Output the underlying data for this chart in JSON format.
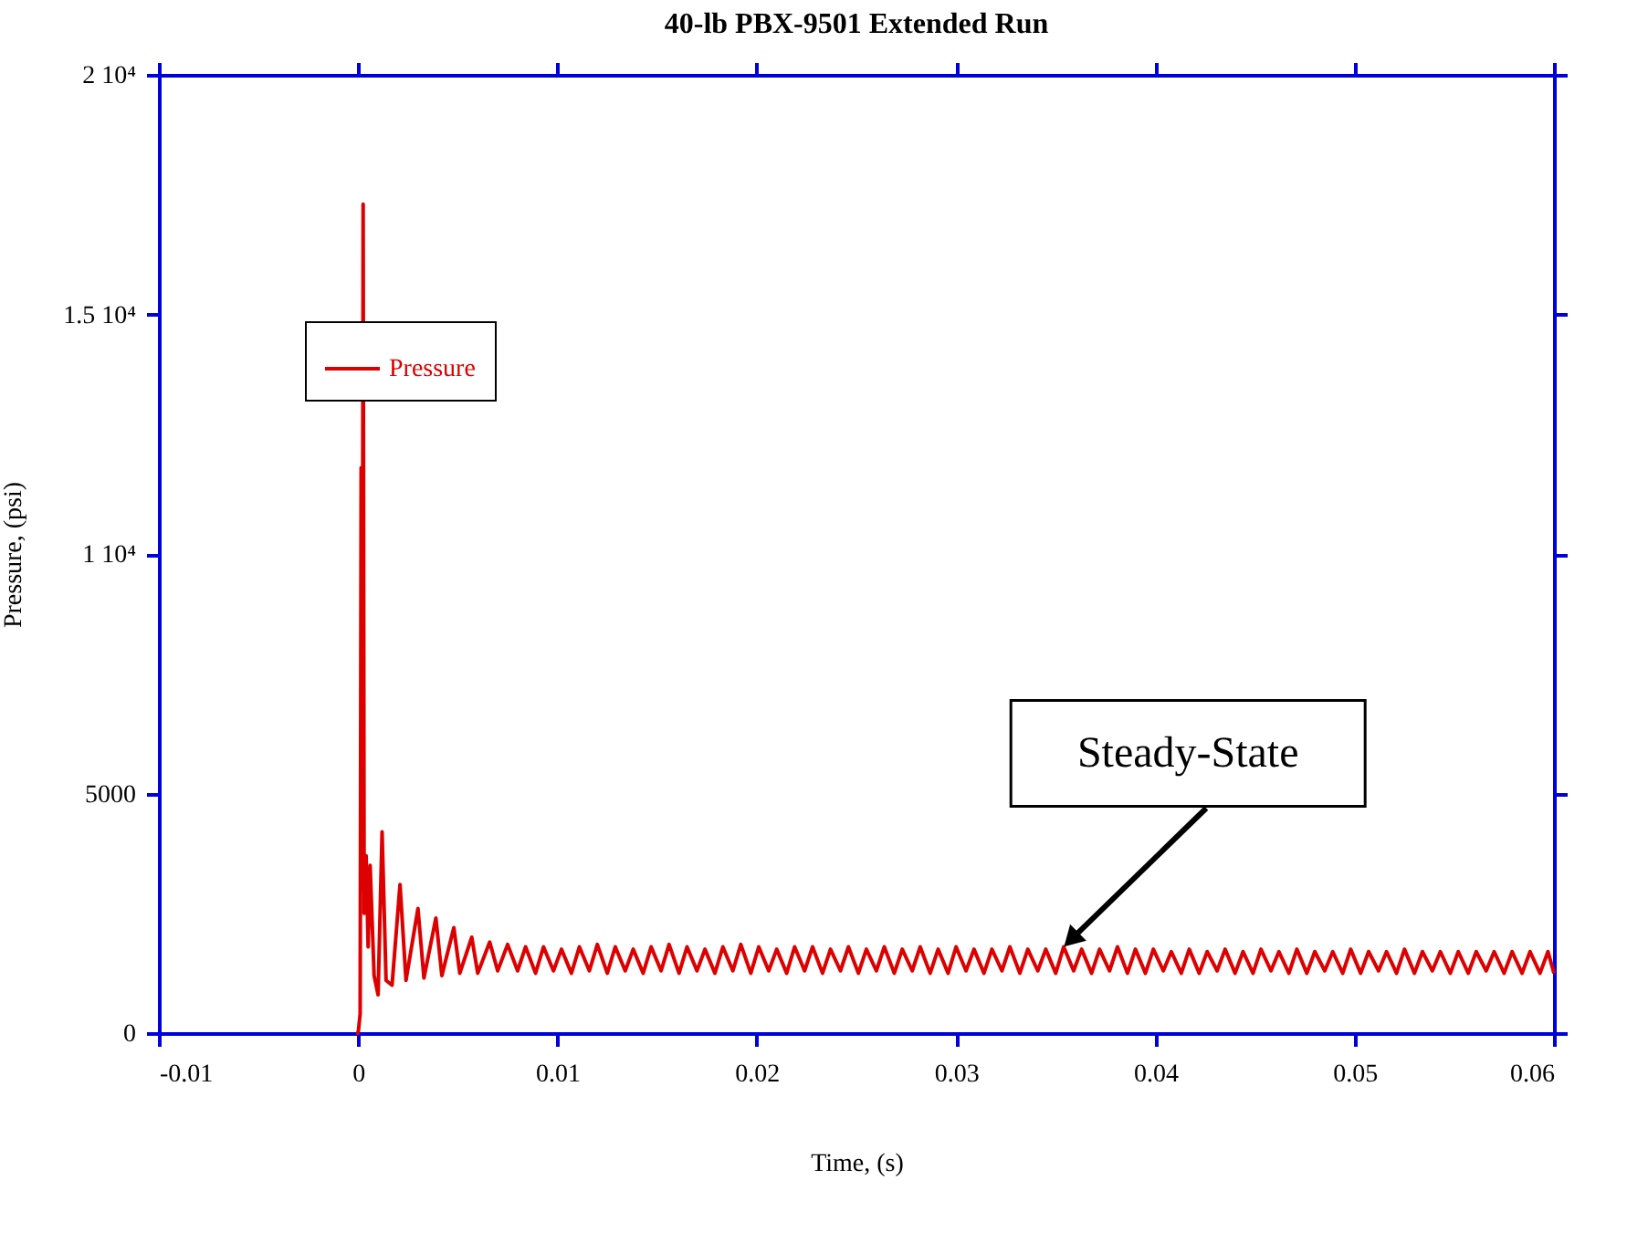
{
  "chart_data": {
    "type": "line",
    "title": "40-lb PBX-9501 Extended Run",
    "xlabel": "Time, (s)",
    "ylabel": "Pressure, (psi)",
    "xlim": [
      -0.01,
      0.06
    ],
    "xticks": [
      -0.01,
      0,
      0.01,
      0.02,
      0.03,
      0.04,
      0.05,
      0.06
    ],
    "ylim": [
      0,
      20000
    ],
    "yticks": [
      0,
      5000,
      {
        "value": 10000,
        "label": "1 10⁴"
      },
      {
        "value": 15000,
        "label": "1.5 10⁴"
      },
      {
        "value": 20000,
        "label": "2 10⁴"
      }
    ],
    "grid": false,
    "legend": "top left",
    "marker": "none",
    "line_style": "solid",
    "annotations": [
      {
        "text": "Steady-State",
        "x": 0.0355,
        "y": 1800
      }
    ],
    "series": [
      {
        "name": "Pressure",
        "color": "#dd0000",
        "x": [
          -0.0001,
          0.0,
          0.0001,
          0.00015,
          0.0002,
          0.00025,
          0.0003,
          0.0004,
          0.0005,
          0.0006,
          0.0008,
          0.001,
          0.0012,
          0.0014,
          0.0017,
          0.0021,
          0.0024,
          0.003,
          0.0033,
          0.0039,
          0.0042,
          0.0048,
          0.0051,
          0.0057,
          0.006,
          0.0066,
          0.007,
          0.0075,
          0.008,
          0.0084,
          0.0089,
          0.0093,
          0.0098,
          0.0102,
          0.0107,
          0.0111,
          0.0116,
          0.012,
          0.0125,
          0.0129,
          0.0134,
          0.0138,
          0.0143,
          0.0147,
          0.0152,
          0.0156,
          0.0161,
          0.0165,
          0.017,
          0.0174,
          0.0179,
          0.0183,
          0.0188,
          0.0192,
          0.0197,
          0.0201,
          0.0206,
          0.021,
          0.0215,
          0.0219,
          0.0224,
          0.0228,
          0.0233,
          0.0237,
          0.0242,
          0.0246,
          0.0251,
          0.0255,
          0.026,
          0.0264,
          0.0269,
          0.0273,
          0.0278,
          0.0282,
          0.0287,
          0.0291,
          0.0296,
          0.03,
          0.0305,
          0.0309,
          0.0314,
          0.0318,
          0.0323,
          0.0327,
          0.0332,
          0.0336,
          0.0341,
          0.0345,
          0.035,
          0.0354,
          0.0359,
          0.0363,
          0.0368,
          0.0372,
          0.0377,
          0.0381,
          0.0386,
          0.039,
          0.0395,
          0.0399,
          0.0404,
          0.0408,
          0.0413,
          0.0417,
          0.0422,
          0.0426,
          0.0431,
          0.0435,
          0.044,
          0.0444,
          0.0449,
          0.0453,
          0.0458,
          0.0462,
          0.0467,
          0.0471,
          0.0476,
          0.048,
          0.0485,
          0.0489,
          0.0494,
          0.0498,
          0.0503,
          0.0507,
          0.0512,
          0.0516,
          0.0521,
          0.0525,
          0.053,
          0.0534,
          0.0539,
          0.0543,
          0.0548,
          0.0552,
          0.0557,
          0.0561,
          0.0566,
          0.057,
          0.0575,
          0.0579,
          0.0584,
          0.0588,
          0.0593,
          0.0597,
          0.06
        ],
        "values": [
          0,
          0,
          400,
          11800,
          3000,
          17300,
          2500,
          3700,
          1800,
          3500,
          1200,
          800,
          4200,
          1100,
          1000,
          3100,
          1100,
          2600,
          1150,
          2400,
          1200,
          2200,
          1250,
          2000,
          1250,
          1900,
          1300,
          1850,
          1300,
          1800,
          1250,
          1800,
          1300,
          1750,
          1250,
          1800,
          1300,
          1850,
          1250,
          1800,
          1300,
          1750,
          1250,
          1800,
          1300,
          1850,
          1250,
          1800,
          1300,
          1750,
          1250,
          1800,
          1300,
          1850,
          1250,
          1800,
          1300,
          1750,
          1250,
          1800,
          1300,
          1800,
          1250,
          1750,
          1300,
          1800,
          1250,
          1750,
          1300,
          1800,
          1250,
          1750,
          1300,
          1800,
          1250,
          1750,
          1250,
          1800,
          1300,
          1750,
          1250,
          1750,
          1300,
          1800,
          1250,
          1750,
          1300,
          1750,
          1250,
          1800,
          1300,
          1750,
          1250,
          1750,
          1300,
          1800,
          1250,
          1750,
          1250,
          1750,
          1300,
          1700,
          1250,
          1750,
          1250,
          1700,
          1300,
          1750,
          1250,
          1700,
          1250,
          1750,
          1300,
          1700,
          1250,
          1750,
          1250,
          1700,
          1300,
          1700,
          1250,
          1750,
          1250,
          1700,
          1300,
          1700,
          1250,
          1750,
          1250,
          1700,
          1300,
          1700,
          1250,
          1700,
          1250,
          1700,
          1300,
          1700,
          1250,
          1700,
          1250,
          1700,
          1250,
          1700,
          1250
        ]
      }
    ]
  }
}
